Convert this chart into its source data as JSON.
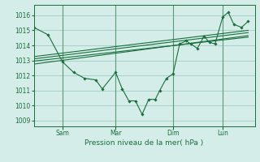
{
  "background_color": "#d4ede8",
  "grid_color": "#a0ccc4",
  "line_color": "#1a6e3c",
  "vline_color": "#5a9a78",
  "ylabel_ticks": [
    1009,
    1010,
    1011,
    1012,
    1013,
    1014,
    1015,
    1016
  ],
  "ylim": [
    1008.6,
    1016.7
  ],
  "xlabel": "Pression niveau de la mer( hPa )",
  "xtick_labels": [
    "Sam",
    "Mar",
    "Dim",
    "Lun"
  ],
  "xtick_positions": [
    0.13,
    0.37,
    0.63,
    0.855
  ],
  "series_zigzag": [
    [
      0.0,
      1015.2
    ],
    [
      0.065,
      1014.7
    ],
    [
      0.13,
      1012.9
    ],
    [
      0.18,
      1012.2
    ],
    [
      0.23,
      1011.8
    ],
    [
      0.28,
      1011.7
    ],
    [
      0.31,
      1011.1
    ],
    [
      0.37,
      1012.2
    ],
    [
      0.4,
      1011.1
    ],
    [
      0.43,
      1010.3
    ],
    [
      0.46,
      1010.3
    ],
    [
      0.49,
      1009.4
    ],
    [
      0.52,
      1010.4
    ],
    [
      0.55,
      1010.4
    ],
    [
      0.57,
      1011.0
    ],
    [
      0.6,
      1011.8
    ],
    [
      0.63,
      1012.1
    ],
    [
      0.66,
      1014.1
    ],
    [
      0.69,
      1014.3
    ],
    [
      0.71,
      1014.1
    ],
    [
      0.74,
      1013.8
    ],
    [
      0.77,
      1014.6
    ],
    [
      0.795,
      1014.2
    ],
    [
      0.82,
      1014.1
    ],
    [
      0.855,
      1015.9
    ],
    [
      0.88,
      1016.2
    ],
    [
      0.905,
      1015.4
    ],
    [
      0.94,
      1015.2
    ],
    [
      0.97,
      1015.6
    ]
  ],
  "series_linear1": [
    [
      0.0,
      1013.1
    ],
    [
      0.97,
      1014.85
    ]
  ],
  "series_linear2": [
    [
      0.0,
      1013.25
    ],
    [
      0.97,
      1015.0
    ]
  ],
  "series_linear3": [
    [
      0.0,
      1012.95
    ],
    [
      0.97,
      1014.55
    ]
  ],
  "series_linear4": [
    [
      0.0,
      1012.75
    ],
    [
      0.97,
      1014.65
    ]
  ],
  "vline_positions": [
    0.13,
    0.37,
    0.63,
    0.855
  ]
}
